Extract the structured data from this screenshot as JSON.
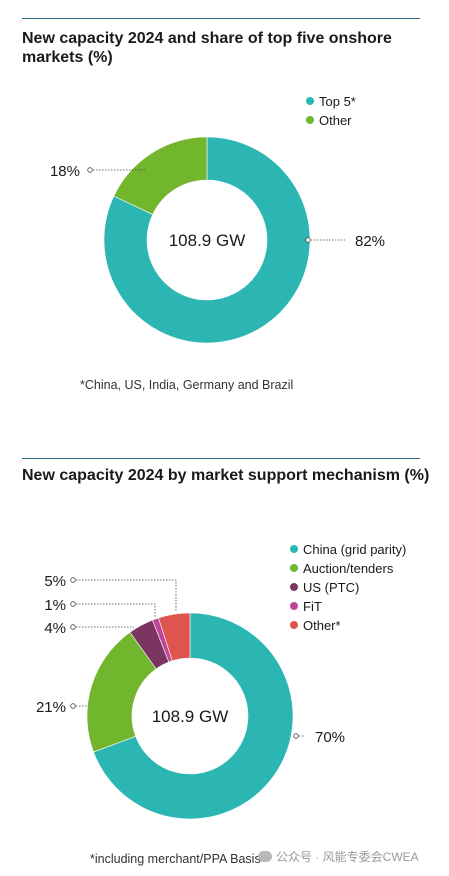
{
  "charts": [
    {
      "title": "New capacity 2024 and share of top five onshore markets (%)",
      "footnote": "*China, US, India, Germany and Brazil"
    },
    {
      "title": "New capacity 2024 by market support mechanism (%)",
      "footnote": "*including merchant/PPA Basis"
    }
  ],
  "watermark": "公众号 · 风能专委会CWEA",
  "chart_data": [
    {
      "type": "pie",
      "title": "New capacity 2024 and share of top five onshore markets (%)",
      "center_label": "108.9 GW",
      "categories": [
        "Top 5*",
        "Other"
      ],
      "values": [
        82,
        18
      ],
      "labels": [
        "82%",
        "18%"
      ],
      "colors": [
        "#2bb5b3",
        "#72b62e"
      ],
      "legend": "top-right"
    },
    {
      "type": "pie",
      "title": "New capacity 2024 by market support mechanism (%)",
      "center_label": "108.9 GW",
      "categories": [
        "China (grid parity)",
        "Auction/tenders",
        "US (PTC)",
        "FiT",
        "Other*"
      ],
      "values": [
        70,
        21,
        4,
        1,
        5
      ],
      "labels": [
        "70%",
        "21%",
        "4%",
        "1%",
        "5%"
      ],
      "colors": [
        "#2bb5b3",
        "#72b62e",
        "#7a3660",
        "#c0469a",
        "#e0544f"
      ],
      "legend": "top-right"
    }
  ]
}
